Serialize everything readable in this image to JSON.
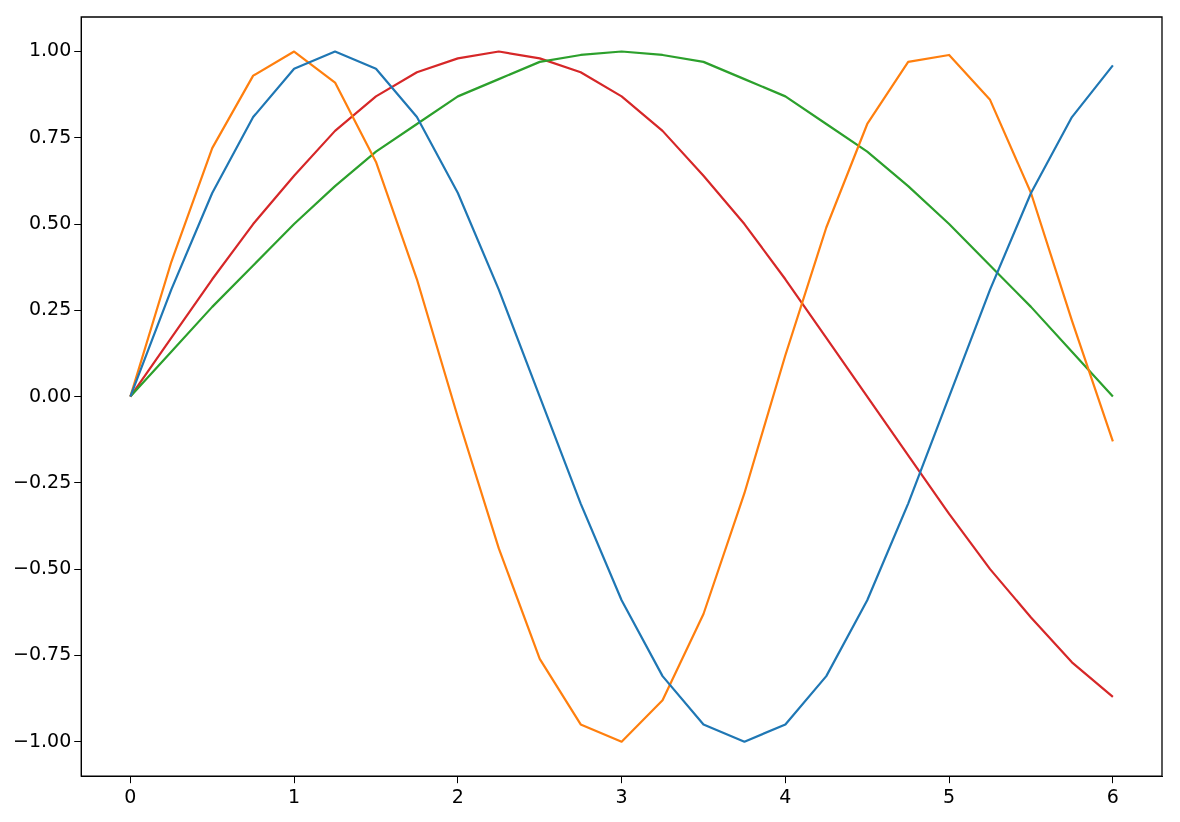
{
  "chart_data": {
    "type": "line",
    "x": [
      0,
      0.25,
      0.5,
      0.75,
      1,
      1.25,
      1.5,
      1.75,
      2,
      2.25,
      2.5,
      2.75,
      3,
      3.25,
      3.5,
      3.75,
      4,
      4.25,
      4.5,
      4.75,
      5,
      5.25,
      5.5,
      5.75,
      6
    ],
    "series": [
      {
        "color": "#1f77b4",
        "values": [
          0,
          0.31,
          0.59,
          0.81,
          0.95,
          1.0,
          0.95,
          0.81,
          0.59,
          0.31,
          0,
          -0.31,
          -0.59,
          -0.81,
          -0.95,
          -1.0,
          -0.95,
          -0.81,
          -0.59,
          -0.31,
          0,
          0.31,
          0.59,
          0.81,
          0.96
        ]
      },
      {
        "color": "#ff7f0e",
        "values": [
          0,
          0.39,
          0.72,
          0.93,
          1.0,
          0.91,
          0.68,
          0.34,
          -0.06,
          -0.44,
          -0.76,
          -0.95,
          -1.0,
          -0.88,
          -0.63,
          -0.28,
          0.12,
          0.49,
          0.79,
          0.97,
          0.99,
          0.86,
          0.59,
          0.22,
          -0.13
        ]
      },
      {
        "color": "#2ca02c",
        "values": [
          0,
          0.13,
          0.26,
          0.38,
          0.5,
          0.61,
          0.71,
          0.79,
          0.87,
          0.92,
          0.97,
          0.99,
          1.0,
          0.99,
          0.97,
          0.92,
          0.87,
          0.79,
          0.71,
          0.61,
          0.5,
          0.38,
          0.26,
          0.13,
          0
        ]
      },
      {
        "color": "#d62728",
        "values": [
          0,
          0.17,
          0.34,
          0.5,
          0.64,
          0.77,
          0.87,
          0.94,
          0.98,
          1.0,
          0.98,
          0.94,
          0.87,
          0.77,
          0.64,
          0.5,
          0.34,
          0.17,
          0,
          -0.17,
          -0.34,
          -0.5,
          -0.64,
          -0.77,
          -0.87
        ]
      }
    ],
    "xlim": [
      -0.3,
      6.3
    ],
    "xticks": [
      0,
      1,
      2,
      3,
      4,
      5,
      6
    ],
    "ylim": [
      -1.1,
      1.1
    ],
    "yticks": [
      {
        "value": -1,
        "label": "−1.00"
      },
      {
        "value": -0.75,
        "label": "−0.75"
      },
      {
        "value": -0.5,
        "label": "−0.50"
      },
      {
        "value": -0.25,
        "label": "−0.25"
      },
      {
        "value": 0,
        "label": "0.00"
      },
      {
        "value": 0.25,
        "label": "0.25"
      },
      {
        "value": 0.5,
        "label": "0.50"
      },
      {
        "value": 0.75,
        "label": "0.75"
      },
      {
        "value": 1,
        "label": "1.00"
      }
    ],
    "grid": false,
    "legend": false,
    "marker": "none",
    "line_style": "solid"
  }
}
